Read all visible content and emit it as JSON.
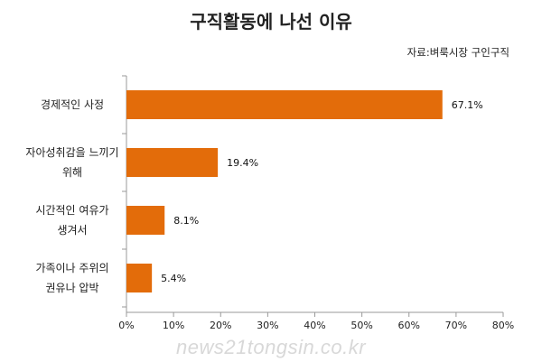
{
  "header": {
    "title": "구직활동에 나선 이유",
    "source": "자료:벼룩시장 구인구직"
  },
  "watermark": "news21tongsin.co.kr",
  "chart_data": {
    "type": "bar",
    "orientation": "horizontal",
    "title": "구직활동에 나선 이유",
    "categories": [
      [
        "경제적인 사정"
      ],
      [
        "자아성취감을 느끼기",
        "위해"
      ],
      [
        "시간적인 여유가",
        "생겨서"
      ],
      [
        "가족이나 주위의",
        "권유나 압박"
      ]
    ],
    "values": [
      67.1,
      19.4,
      8.1,
      5.4
    ],
    "data_labels": [
      "67.1%",
      "19.4%",
      "8.1%",
      "5.4%"
    ],
    "xlim": [
      0,
      80
    ],
    "xticks": [
      "0%",
      "10%",
      "20%",
      "30%",
      "40%",
      "50%",
      "60%",
      "70%",
      "80%"
    ],
    "grid": false,
    "legend": "none",
    "bar_color": "#E36C0A",
    "axis_color": "#999999"
  }
}
